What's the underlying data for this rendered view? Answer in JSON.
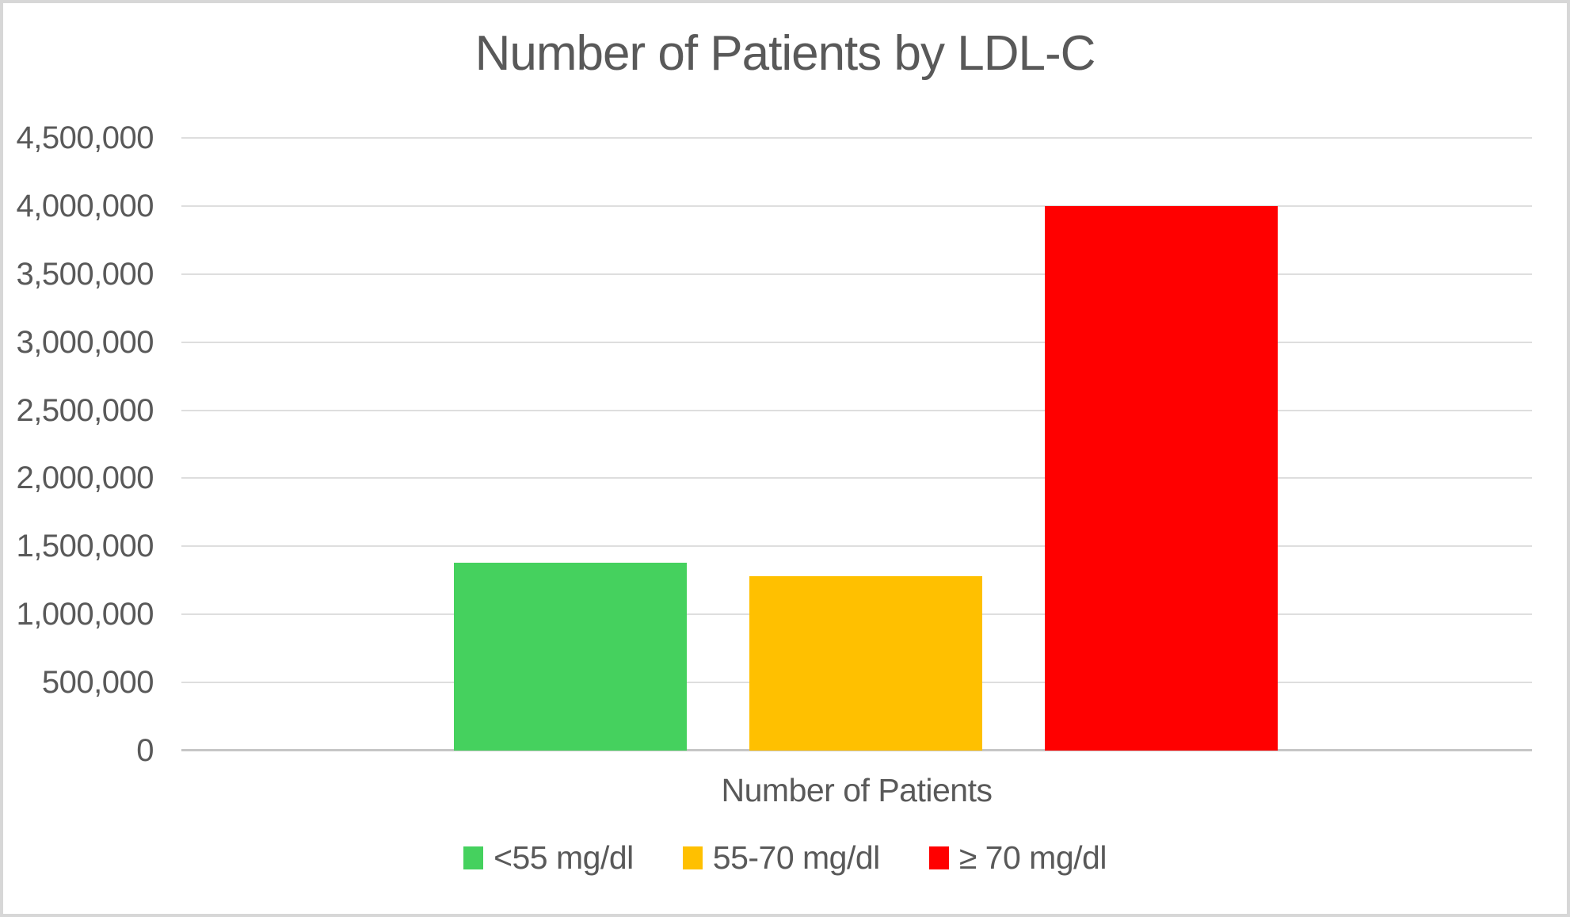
{
  "chart_title": "Number of Patients by LDL-C",
  "chart_data": {
    "type": "bar",
    "title": "Number of Patients by LDL-C",
    "xlabel": "Number of Patients",
    "ylabel": "",
    "categories": [
      "Number of Patients"
    ],
    "series": [
      {
        "name": "<55 mg/dl",
        "color": "#45d15e",
        "values": [
          1380000
        ]
      },
      {
        "name": "55-70 mg/dl",
        "color": "#ffc000",
        "values": [
          1280000
        ]
      },
      {
        "name": "≥ 70 mg/dl",
        "color": "#ff0000",
        "values": [
          4000000
        ]
      }
    ],
    "ylim": [
      0,
      4500000
    ],
    "ytick_step": 500000,
    "ytick_labels": [
      "0",
      "500,000",
      "1,000,000",
      "1,500,000",
      "2,000,000",
      "2,500,000",
      "3,000,000",
      "3,500,000",
      "4,000,000",
      "4,500,000"
    ],
    "grid": true,
    "legend_position": "bottom",
    "text_color": "#595959",
    "gridline_color": "#dedede",
    "axis_line_color": "#c6c6c6"
  }
}
